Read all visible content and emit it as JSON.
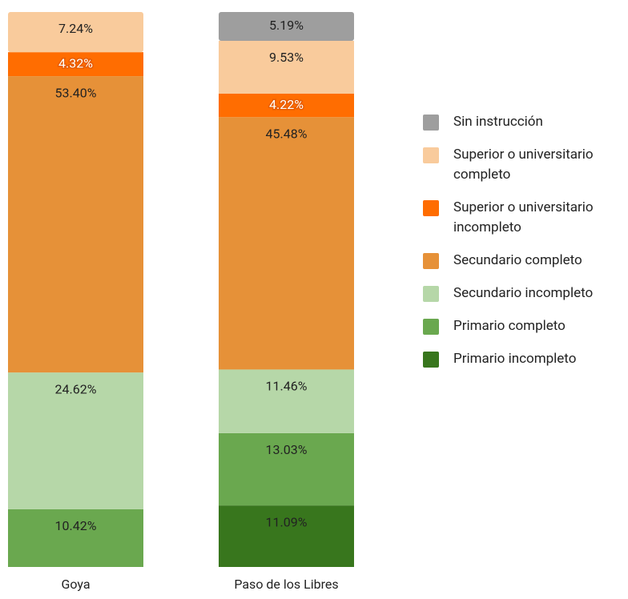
{
  "chart_data": {
    "type": "stacked-bar",
    "categories": [
      "Goya",
      "Paso de los Libres"
    ],
    "series": [
      {
        "name": "Sin instrucción",
        "color": "#9e9e9e",
        "values": [
          null,
          5.19
        ],
        "value_labels": [
          null,
          "5.19%"
        ]
      },
      {
        "name": "Superior o universitario completo",
        "color": "#f9cb9c",
        "values": [
          7.24,
          9.53
        ],
        "value_labels": [
          "7.24%",
          "9.53%"
        ]
      },
      {
        "name": "Superior o universitario incompleto",
        "color": "#ff6d01",
        "values": [
          4.32,
          4.22
        ],
        "value_labels": [
          "4.32%",
          "4.22%"
        ]
      },
      {
        "name": "Secundario completo",
        "color": "#e69138",
        "values": [
          53.4,
          45.48
        ],
        "value_labels": [
          "53.40%",
          "45.48%"
        ]
      },
      {
        "name": "Secundario incompleto",
        "color": "#b6d7a8",
        "values": [
          24.62,
          11.46
        ],
        "value_labels": [
          "24.62%",
          "11.46%"
        ]
      },
      {
        "name": "Primario completo",
        "color": "#6aa84f",
        "values": [
          10.42,
          13.03
        ],
        "value_labels": [
          "10.42%",
          "13.03%"
        ]
      },
      {
        "name": "Primario incompleto",
        "color": "#38761d",
        "values": [
          null,
          11.09
        ],
        "value_labels": [
          null,
          "11.09%"
        ]
      }
    ],
    "ylim": [
      0,
      100
    ]
  }
}
